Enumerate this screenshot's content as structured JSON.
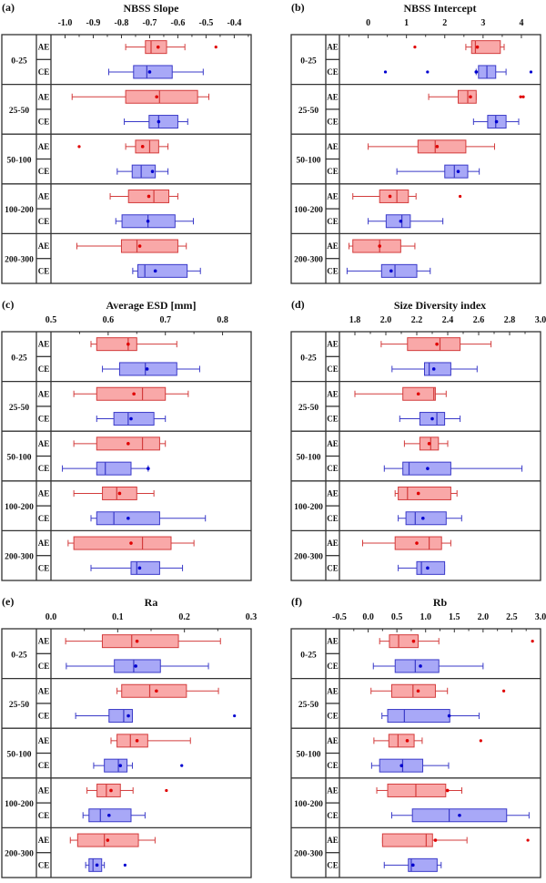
{
  "figure": {
    "groups": [
      "0-25",
      "25-50",
      "50-100",
      "100-200",
      "200-300"
    ],
    "sublabels": [
      "AE",
      "CE"
    ],
    "colors": {
      "AE_fill": "#f9a8a8",
      "AE_stroke": "#d33c3c",
      "AE_mean": "#e00000",
      "CE_fill": "#a8a8f7",
      "CE_stroke": "#3a3ac8",
      "CE_mean": "#0000d0",
      "frame": "#333333"
    }
  },
  "chart_data": [
    {
      "type": "boxplot",
      "panel": "(a)",
      "title": "NBSS Slope",
      "orientation": "horizontal",
      "xlim": [
        -1.05,
        -0.34
      ],
      "ticks": [
        -1.0,
        -0.9,
        -0.8,
        -0.7,
        -0.6,
        -0.5,
        -0.4
      ],
      "minor_step": 0.05,
      "series": [
        {
          "group": "0-25",
          "type": "AE",
          "whisker_low": -0.785,
          "q1": -0.715,
          "median": -0.695,
          "q3": -0.64,
          "whisker_high": -0.575,
          "mean": -0.67,
          "outliers": [
            -0.465
          ]
        },
        {
          "group": "0-25",
          "type": "CE",
          "whisker_low": -0.845,
          "q1": -0.757,
          "median": -0.71,
          "q3": -0.62,
          "whisker_high": -0.51,
          "mean": -0.7,
          "outliers": []
        },
        {
          "group": "25-50",
          "type": "AE",
          "whisker_low": -0.975,
          "q1": -0.785,
          "median": -0.665,
          "q3": -0.53,
          "whisker_high": -0.49,
          "mean": -0.675,
          "outliers": []
        },
        {
          "group": "25-50",
          "type": "CE",
          "whisker_low": -0.79,
          "q1": -0.702,
          "median": -0.668,
          "q3": -0.6,
          "whisker_high": -0.565,
          "mean": -0.668,
          "outliers": []
        },
        {
          "group": "50-100",
          "type": "AE",
          "whisker_low": -0.785,
          "q1": -0.75,
          "median": -0.7,
          "q3": -0.668,
          "whisker_high": -0.635,
          "mean": -0.725,
          "outliers": [
            -0.95
          ]
        },
        {
          "group": "50-100",
          "type": "CE",
          "whisker_low": -0.815,
          "q1": -0.762,
          "median": -0.73,
          "q3": -0.68,
          "whisker_high": -0.635,
          "mean": -0.69,
          "outliers": []
        },
        {
          "group": "100-200",
          "type": "AE",
          "whisker_low": -0.84,
          "q1": -0.775,
          "median": -0.685,
          "q3": -0.632,
          "whisker_high": -0.6,
          "mean": -0.703,
          "outliers": []
        },
        {
          "group": "100-200",
          "type": "CE",
          "whisker_low": -0.82,
          "q1": -0.798,
          "median": -0.706,
          "q3": -0.61,
          "whisker_high": -0.545,
          "mean": -0.706,
          "outliers": []
        },
        {
          "group": "200-300",
          "type": "AE",
          "whisker_low": -0.958,
          "q1": -0.8,
          "median": -0.745,
          "q3": -0.6,
          "whisker_high": -0.57,
          "mean": -0.735,
          "outliers": []
        },
        {
          "group": "200-300",
          "type": "CE",
          "whisker_low": -0.76,
          "q1": -0.742,
          "median": -0.717,
          "q3": -0.567,
          "whisker_high": -0.52,
          "mean": -0.68,
          "outliers": []
        }
      ]
    },
    {
      "type": "boxplot",
      "panel": "(b)",
      "title": "NBSS Intercept",
      "orientation": "horizontal",
      "xlim": [
        -0.75,
        4.5
      ],
      "ticks": [
        0,
        1,
        2,
        3,
        4
      ],
      "minor_step": 0.5,
      "series": [
        {
          "group": "0-25",
          "type": "AE",
          "whisker_low": 2.55,
          "q1": 2.7,
          "median": 2.8,
          "q3": 3.45,
          "whisker_high": 3.55,
          "mean": 2.85,
          "outliers": [
            1.22
          ]
        },
        {
          "group": "0-25",
          "type": "CE",
          "whisker_low": 2.82,
          "q1": 2.88,
          "median": 3.1,
          "q3": 3.33,
          "whisker_high": 3.6,
          "mean": 2.82,
          "outliers": [
            0.45,
            1.55,
            4.25
          ]
        },
        {
          "group": "25-50",
          "type": "AE",
          "whisker_low": 1.58,
          "q1": 2.35,
          "median": 2.6,
          "q3": 2.82,
          "whisker_high": 2.82,
          "mean": 2.67,
          "outliers": [
            3.98,
            4.05
          ]
        },
        {
          "group": "25-50",
          "type": "CE",
          "whisker_low": 2.75,
          "q1": 3.12,
          "median": 3.33,
          "q3": 3.6,
          "whisker_high": 3.93,
          "mean": 3.35,
          "outliers": []
        },
        {
          "group": "50-100",
          "type": "AE",
          "whisker_low": 0.0,
          "q1": 1.3,
          "median": 1.75,
          "q3": 2.55,
          "whisker_high": 3.3,
          "mean": 1.8,
          "outliers": []
        },
        {
          "group": "50-100",
          "type": "CE",
          "whisker_low": 0.75,
          "q1": 2.0,
          "median": 2.25,
          "q3": 2.6,
          "whisker_high": 2.9,
          "mean": 2.35,
          "outliers": []
        },
        {
          "group": "100-200",
          "type": "AE",
          "whisker_low": -0.4,
          "q1": 0.3,
          "median": 0.75,
          "q3": 1.05,
          "whisker_high": 1.25,
          "mean": 0.57,
          "outliers": [
            2.4
          ]
        },
        {
          "group": "100-200",
          "type": "CE",
          "whisker_low": 0.0,
          "q1": 0.47,
          "median": 0.88,
          "q3": 1.1,
          "whisker_high": 1.95,
          "mean": 0.85,
          "outliers": []
        },
        {
          "group": "200-300",
          "type": "AE",
          "whisker_low": -0.5,
          "q1": -0.4,
          "median": 0.3,
          "q3": 0.85,
          "whisker_high": 1.22,
          "mean": 0.3,
          "outliers": []
        },
        {
          "group": "200-300",
          "type": "CE",
          "whisker_low": -0.55,
          "q1": 0.35,
          "median": 0.7,
          "q3": 1.27,
          "whisker_high": 1.62,
          "mean": 0.6,
          "outliers": []
        }
      ]
    },
    {
      "type": "boxplot",
      "panel": "(c)",
      "title": "Average ESD [mm]",
      "orientation": "horizontal",
      "xlim": [
        0.5,
        0.85
      ],
      "ticks": [
        0.5,
        0.6,
        0.7,
        0.8
      ],
      "minor_step": 0.05,
      "series": [
        {
          "group": "0-25",
          "type": "AE",
          "whisker_low": 0.57,
          "q1": 0.58,
          "median": 0.635,
          "q3": 0.65,
          "whisker_high": 0.72,
          "mean": 0.635,
          "outliers": []
        },
        {
          "group": "0-25",
          "type": "CE",
          "whisker_low": 0.59,
          "q1": 0.62,
          "median": 0.665,
          "q3": 0.72,
          "whisker_high": 0.76,
          "mean": 0.668,
          "outliers": []
        },
        {
          "group": "25-50",
          "type": "AE",
          "whisker_low": 0.54,
          "q1": 0.58,
          "median": 0.66,
          "q3": 0.7,
          "whisker_high": 0.74,
          "mean": 0.645,
          "outliers": []
        },
        {
          "group": "25-50",
          "type": "CE",
          "whisker_low": 0.58,
          "q1": 0.61,
          "median": 0.635,
          "q3": 0.68,
          "whisker_high": 0.7,
          "mean": 0.64,
          "outliers": []
        },
        {
          "group": "50-100",
          "type": "AE",
          "whisker_low": 0.54,
          "q1": 0.58,
          "median": 0.66,
          "q3": 0.69,
          "whisker_high": 0.7,
          "mean": 0.635,
          "outliers": []
        },
        {
          "group": "50-100",
          "type": "CE",
          "whisker_low": 0.52,
          "q1": 0.58,
          "median": 0.595,
          "q3": 0.64,
          "whisker_high": 0.67,
          "mean": 0.67,
          "outliers": []
        },
        {
          "group": "100-200",
          "type": "AE",
          "whisker_low": 0.54,
          "q1": 0.59,
          "median": 0.615,
          "q3": 0.65,
          "whisker_high": 0.68,
          "mean": 0.62,
          "outliers": []
        },
        {
          "group": "100-200",
          "type": "CE",
          "whisker_low": 0.57,
          "q1": 0.58,
          "median": 0.61,
          "q3": 0.69,
          "whisker_high": 0.77,
          "mean": 0.635,
          "outliers": []
        },
        {
          "group": "200-300",
          "type": "AE",
          "whisker_low": 0.53,
          "q1": 0.54,
          "median": 0.66,
          "q3": 0.71,
          "whisker_high": 0.75,
          "mean": 0.64,
          "outliers": []
        },
        {
          "group": "200-300",
          "type": "CE",
          "whisker_low": 0.57,
          "q1": 0.64,
          "median": 0.65,
          "q3": 0.69,
          "whisker_high": 0.73,
          "mean": 0.655,
          "outliers": []
        }
      ]
    },
    {
      "type": "boxplot",
      "panel": "(d)",
      "title": "Size Diversity index",
      "orientation": "horizontal",
      "xlim": [
        1.7,
        3.0
      ],
      "ticks": [
        1.8,
        2.0,
        2.2,
        2.4,
        2.6,
        2.8,
        3.0
      ],
      "minor_step": 0.1,
      "series": [
        {
          "group": "0-25",
          "type": "AE",
          "whisker_low": 1.97,
          "q1": 2.14,
          "median": 2.35,
          "q3": 2.48,
          "whisker_high": 2.68,
          "mean": 2.33,
          "outliers": []
        },
        {
          "group": "0-25",
          "type": "CE",
          "whisker_low": 2.04,
          "q1": 2.25,
          "median": 2.28,
          "q3": 2.42,
          "whisker_high": 2.59,
          "mean": 2.31,
          "outliers": []
        },
        {
          "group": "25-50",
          "type": "AE",
          "whisker_low": 1.8,
          "q1": 2.11,
          "median": 2.31,
          "q3": 2.32,
          "whisker_high": 2.39,
          "mean": 2.21,
          "outliers": []
        },
        {
          "group": "25-50",
          "type": "CE",
          "whisker_low": 2.09,
          "q1": 2.22,
          "median": 2.33,
          "q3": 2.38,
          "whisker_high": 2.48,
          "mean": 2.3,
          "outliers": []
        },
        {
          "group": "50-100",
          "type": "AE",
          "whisker_low": 2.12,
          "q1": 2.22,
          "median": 2.29,
          "q3": 2.34,
          "whisker_high": 2.4,
          "mean": 2.28,
          "outliers": []
        },
        {
          "group": "50-100",
          "type": "CE",
          "whisker_low": 1.99,
          "q1": 2.11,
          "median": 2.15,
          "q3": 2.42,
          "whisker_high": 2.88,
          "mean": 2.27,
          "outliers": []
        },
        {
          "group": "100-200",
          "type": "AE",
          "whisker_low": 2.06,
          "q1": 2.08,
          "median": 2.14,
          "q3": 2.42,
          "whisker_high": 2.46,
          "mean": 2.21,
          "outliers": []
        },
        {
          "group": "100-200",
          "type": "CE",
          "whisker_low": 2.08,
          "q1": 2.13,
          "median": 2.19,
          "q3": 2.39,
          "whisker_high": 2.49,
          "mean": 2.24,
          "outliers": []
        },
        {
          "group": "200-300",
          "type": "AE",
          "whisker_low": 1.85,
          "q1": 2.06,
          "median": 2.28,
          "q3": 2.36,
          "whisker_high": 2.42,
          "mean": 2.2,
          "outliers": []
        },
        {
          "group": "200-300",
          "type": "CE",
          "whisker_low": 2.08,
          "q1": 2.2,
          "median": 2.23,
          "q3": 2.38,
          "whisker_high": 2.38,
          "mean": 2.27,
          "outliers": []
        }
      ]
    },
    {
      "type": "boxplot",
      "panel": "(e)",
      "title": "Ra",
      "orientation": "horizontal",
      "xlim": [
        0.0,
        0.3
      ],
      "ticks": [
        0.0,
        0.1,
        0.2,
        0.3
      ],
      "minor_step": 0.05,
      "series": [
        {
          "group": "0-25",
          "type": "AE",
          "whisker_low": 0.022,
          "q1": 0.077,
          "median": 0.121,
          "q3": 0.191,
          "whisker_high": 0.254,
          "mean": 0.129,
          "outliers": []
        },
        {
          "group": "0-25",
          "type": "CE",
          "whisker_low": 0.023,
          "q1": 0.095,
          "median": 0.124,
          "q3": 0.164,
          "whisker_high": 0.236,
          "mean": 0.127,
          "outliers": []
        },
        {
          "group": "25-50",
          "type": "AE",
          "whisker_low": 0.099,
          "q1": 0.106,
          "median": 0.148,
          "q3": 0.203,
          "whisker_high": 0.251,
          "mean": 0.158,
          "outliers": []
        },
        {
          "group": "25-50",
          "type": "CE",
          "whisker_low": 0.037,
          "q1": 0.087,
          "median": 0.109,
          "q3": 0.122,
          "whisker_high": 0.122,
          "mean": 0.116,
          "outliers": [
            0.275
          ]
        },
        {
          "group": "50-100",
          "type": "AE",
          "whisker_low": 0.09,
          "q1": 0.099,
          "median": 0.119,
          "q3": 0.145,
          "whisker_high": 0.209,
          "mean": 0.129,
          "outliers": []
        },
        {
          "group": "50-100",
          "type": "CE",
          "whisker_low": 0.064,
          "q1": 0.08,
          "median": 0.101,
          "q3": 0.114,
          "whisker_high": 0.122,
          "mean": 0.104,
          "outliers": [
            0.196
          ]
        },
        {
          "group": "100-200",
          "type": "AE",
          "whisker_low": 0.054,
          "q1": 0.069,
          "median": 0.083,
          "q3": 0.104,
          "whisker_high": 0.123,
          "mean": 0.09,
          "outliers": [
            0.173
          ]
        },
        {
          "group": "100-200",
          "type": "CE",
          "whisker_low": 0.048,
          "q1": 0.057,
          "median": 0.074,
          "q3": 0.12,
          "whisker_high": 0.141,
          "mean": 0.087,
          "outliers": []
        },
        {
          "group": "200-300",
          "type": "AE",
          "whisker_low": 0.029,
          "q1": 0.04,
          "median": 0.08,
          "q3": 0.131,
          "whisker_high": 0.156,
          "mean": 0.085,
          "outliers": []
        },
        {
          "group": "200-300",
          "type": "CE",
          "whisker_low": 0.052,
          "q1": 0.057,
          "median": 0.063,
          "q3": 0.076,
          "whisker_high": 0.08,
          "mean": 0.069,
          "outliers": [
            0.111
          ]
        }
      ]
    },
    {
      "type": "boxplot",
      "panel": "(f)",
      "title": "Rb",
      "orientation": "horizontal",
      "xlim": [
        -0.5,
        3.0
      ],
      "ticks": [
        -0.5,
        0.0,
        0.5,
        1.0,
        1.5,
        2.0,
        2.5,
        3.0
      ],
      "minor_step": 0.25,
      "series": [
        {
          "group": "0-25",
          "type": "AE",
          "whisker_low": 0.2,
          "q1": 0.37,
          "median": 0.53,
          "q3": 0.87,
          "whisker_high": 1.23,
          "mean": 0.79,
          "outliers": [
            2.86
          ]
        },
        {
          "group": "0-25",
          "type": "CE",
          "whisker_low": 0.09,
          "q1": 0.47,
          "median": 0.82,
          "q3": 1.23,
          "whisker_high": 2.0,
          "mean": 0.91,
          "outliers": []
        },
        {
          "group": "25-50",
          "type": "AE",
          "whisker_low": 0.05,
          "q1": 0.41,
          "median": 0.78,
          "q3": 1.17,
          "whisker_high": 1.38,
          "mean": 0.87,
          "outliers": [
            2.36
          ]
        },
        {
          "group": "25-50",
          "type": "CE",
          "whisker_low": 0.24,
          "q1": 0.34,
          "median": 0.63,
          "q3": 1.42,
          "whisker_high": 1.93,
          "mean": 1.41,
          "outliers": []
        },
        {
          "group": "50-100",
          "type": "AE",
          "whisker_low": 0.1,
          "q1": 0.36,
          "median": 0.52,
          "q3": 0.8,
          "whisker_high": 0.94,
          "mean": 0.68,
          "outliers": [
            1.96
          ]
        },
        {
          "group": "50-100",
          "type": "CE",
          "whisker_low": 0.06,
          "q1": 0.2,
          "median": 0.6,
          "q3": 0.95,
          "whisker_high": 1.4,
          "mean": 0.58,
          "outliers": []
        },
        {
          "group": "100-200",
          "type": "AE",
          "whisker_low": 0.15,
          "q1": 0.34,
          "median": 0.83,
          "q3": 1.35,
          "whisker_high": 1.63,
          "mean": 1.38,
          "outliers": []
        },
        {
          "group": "100-200",
          "type": "CE",
          "whisker_low": 0.41,
          "q1": 0.77,
          "median": 1.41,
          "q3": 2.41,
          "whisker_high": 2.8,
          "mean": 1.59,
          "outliers": []
        },
        {
          "group": "200-300",
          "type": "AE",
          "whisker_low": 0.25,
          "q1": 0.25,
          "median": 1.01,
          "q3": 1.12,
          "whisker_high": 1.72,
          "mean": 1.17,
          "outliers": [
            2.78
          ]
        },
        {
          "group": "200-300",
          "type": "CE",
          "whisker_low": 0.28,
          "q1": 0.7,
          "median": 0.75,
          "q3": 1.2,
          "whisker_high": 1.27,
          "mean": 0.78,
          "outliers": []
        }
      ]
    }
  ]
}
